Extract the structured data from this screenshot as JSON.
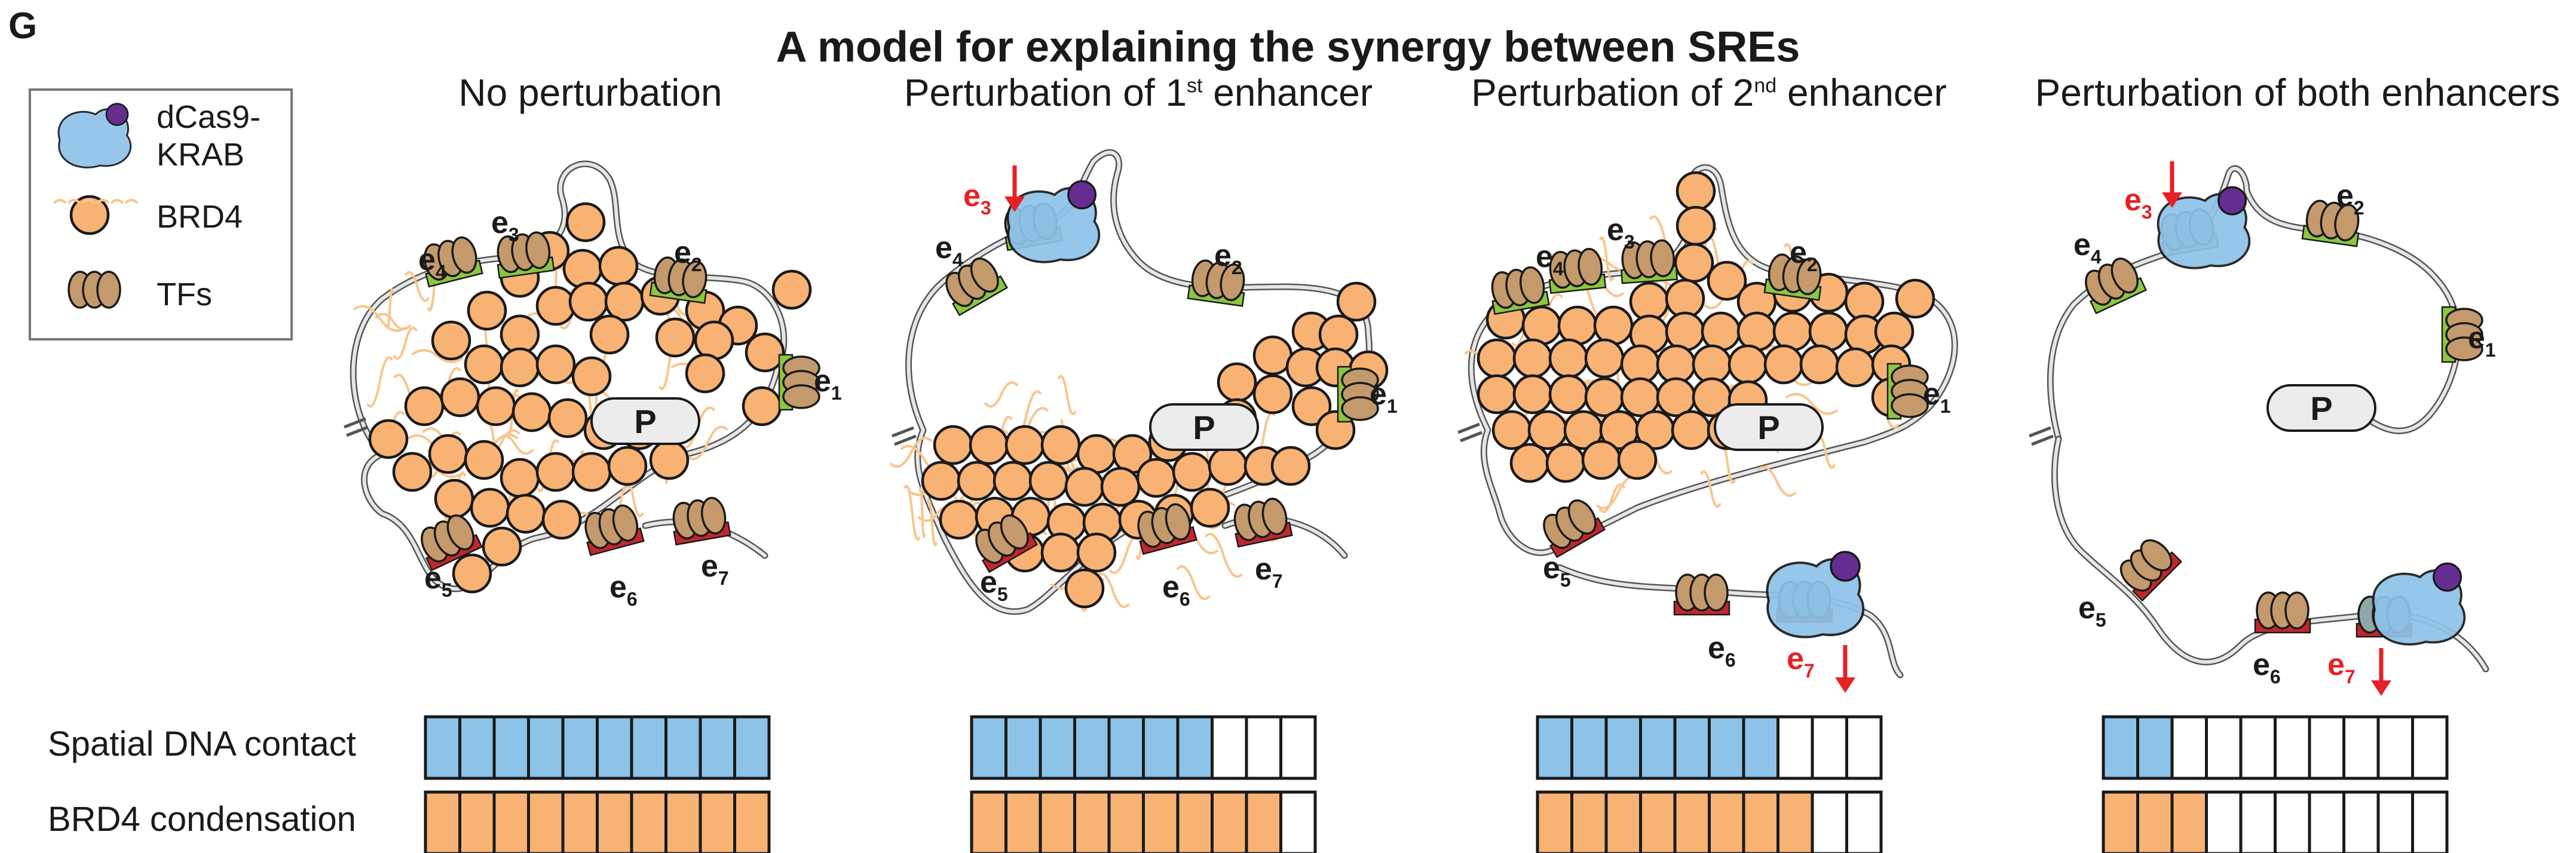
{
  "panel_letter": "G",
  "title": "A model for explaining the synergy between SREs",
  "legend": {
    "dcas9_line1": "dCas9-",
    "dcas9_line2": "KRAB",
    "brd4": "BRD4",
    "tfs": "TFs"
  },
  "columns": [
    {
      "title": "No perturbation",
      "title_pre": "",
      "title_sup": "",
      "title_post": ""
    },
    {
      "title": "",
      "title_pre": "Perturbation of 1",
      "title_sup": "st",
      "title_post": " enhancer"
    },
    {
      "title": "",
      "title_pre": "Perturbation of 2",
      "title_sup": "nd",
      "title_post": " enhancer"
    },
    {
      "title": "Perturbation of both enhancers",
      "title_pre": "",
      "title_sup": "",
      "title_post": ""
    }
  ],
  "enhancer_labels": {
    "e": "e",
    "subs": [
      "1",
      "2",
      "3",
      "4",
      "5",
      "6",
      "7"
    ]
  },
  "promoter_label": "P",
  "rows": {
    "spatial_contact": "Spatial DNA contact",
    "brd4_condensation": "BRD4 condensation"
  },
  "bar_levels": {
    "total_cells": 10,
    "spatial_contact": [
      10,
      7,
      7,
      2
    ],
    "brd4_condensation": [
      10,
      9,
      8,
      3
    ]
  },
  "colors": {
    "blue": "#8ec3e9",
    "orange": "#f7b274",
    "green": "#8dc63f",
    "red": "#c1272d",
    "tf_brown": "#c49a6c",
    "purple": "#662d91",
    "perturb_red": "#e62125",
    "dna_grey": "#9a9a9a",
    "wisp": "#f7c58c"
  },
  "icons": [
    "dcas9-krab-icon",
    "brd4-circle-icon",
    "tf-cluster-icon",
    "down-arrow-icon"
  ]
}
